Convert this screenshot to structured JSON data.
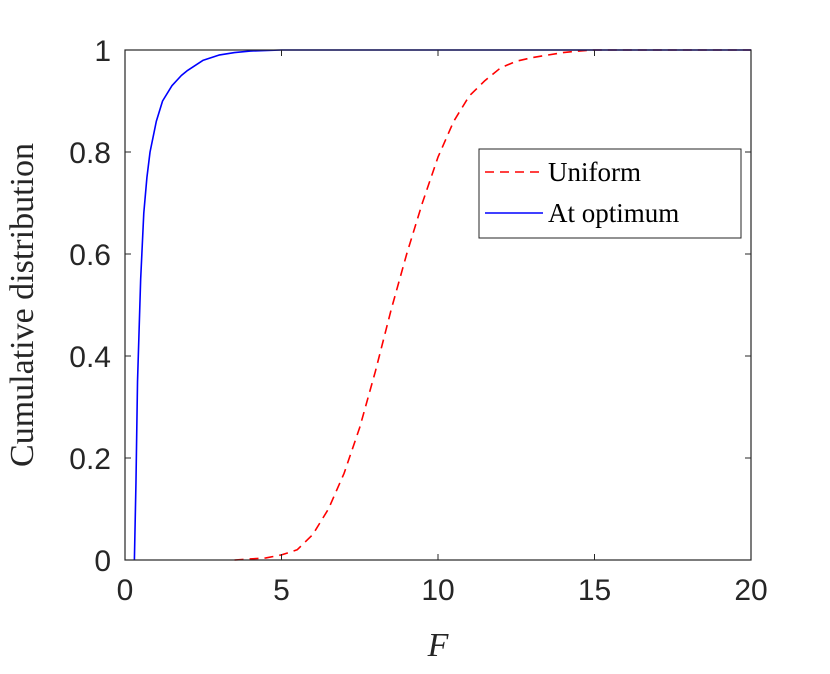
{
  "chart_data": {
    "type": "line",
    "title": "",
    "xlabel": "F",
    "ylabel": "Cumulative distribution",
    "xlim": [
      0,
      20
    ],
    "ylim": [
      0,
      1
    ],
    "xticks": [
      0,
      5,
      10,
      15,
      20
    ],
    "yticks": [
      0,
      0.2,
      0.4,
      0.6,
      0.8,
      1
    ],
    "xtick_labels": [
      "0",
      "5",
      "10",
      "15",
      "20"
    ],
    "ytick_labels": [
      "0",
      "0.2",
      "0.4",
      "0.6",
      "0.8",
      "1"
    ],
    "grid": false,
    "legend_position": "top-right",
    "series": [
      {
        "name": "Uniform",
        "color": "#ff0000",
        "style": "dashed",
        "x": [
          3.5,
          4.0,
          4.5,
          5.0,
          5.5,
          6.0,
          6.5,
          7.0,
          7.5,
          8.0,
          8.5,
          9.0,
          9.5,
          10.0,
          10.5,
          11.0,
          11.5,
          12.0,
          12.5,
          13.0,
          13.5,
          14.0,
          14.5,
          15.0,
          20.0
        ],
        "y": [
          0.0,
          0.002,
          0.004,
          0.01,
          0.02,
          0.05,
          0.1,
          0.17,
          0.26,
          0.37,
          0.49,
          0.6,
          0.7,
          0.79,
          0.86,
          0.91,
          0.94,
          0.965,
          0.978,
          0.985,
          0.99,
          0.995,
          0.998,
          1.0,
          1.0
        ]
      },
      {
        "name": "At optimum",
        "color": "#0000ff",
        "style": "solid",
        "x": [
          0.3,
          0.35,
          0.4,
          0.5,
          0.6,
          0.7,
          0.8,
          1.0,
          1.2,
          1.5,
          1.8,
          2.0,
          2.5,
          3.0,
          3.5,
          4.0,
          5.0,
          6.0,
          20.0
        ],
        "y": [
          0.0,
          0.15,
          0.35,
          0.55,
          0.68,
          0.75,
          0.8,
          0.86,
          0.9,
          0.93,
          0.95,
          0.96,
          0.98,
          0.99,
          0.995,
          0.998,
          1.0,
          1.0,
          1.0
        ]
      }
    ]
  }
}
